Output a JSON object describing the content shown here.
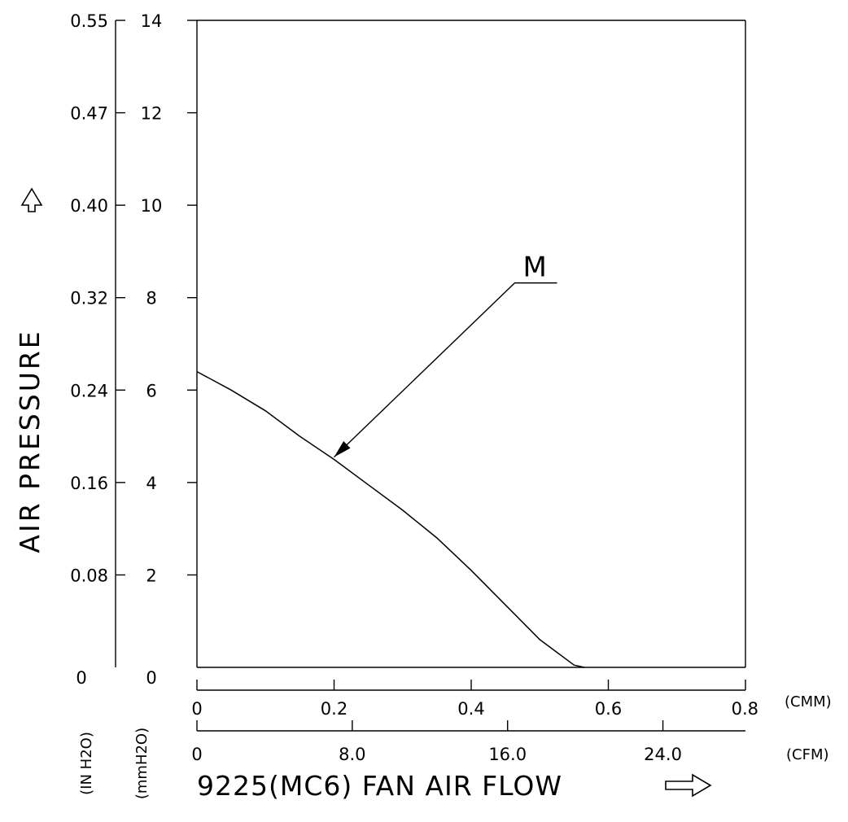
{
  "chart_data": {
    "type": "line",
    "title": "9225(MC6) FAN AIR FLOW",
    "ylabel": "AIR PRESSURE",
    "x_units": {
      "primary": "(CMM)",
      "secondary": "(CFM)"
    },
    "y_units": {
      "primary": "(mmH2O)",
      "secondary": "(IN H2O)"
    },
    "x_ticks_cmm": [
      "0",
      "0.2",
      "0.4",
      "0.6",
      "0.8"
    ],
    "x_ticks_cfm": [
      "0",
      "8.0",
      "16.0",
      "24.0"
    ],
    "y_ticks_mmh2o": [
      "0",
      "2",
      "4",
      "6",
      "8",
      "10",
      "12",
      "14"
    ],
    "y_ticks_inh2o": [
      "0",
      "0.08",
      "0.16",
      "0.24",
      "0.32",
      "0.40",
      "0.47",
      "0.55"
    ],
    "xlim": [
      0,
      0.8
    ],
    "ylim": [
      0,
      14
    ],
    "grid": false,
    "series": [
      {
        "name": "M",
        "x": [
          0,
          0.05,
          0.1,
          0.15,
          0.2,
          0.25,
          0.3,
          0.35,
          0.4,
          0.45,
          0.5,
          0.55,
          0.565
        ],
        "values": [
          6.4,
          6.0,
          5.55,
          5.0,
          4.5,
          3.95,
          3.4,
          2.8,
          2.1,
          1.35,
          0.6,
          0.05,
          0
        ]
      }
    ],
    "annotation": {
      "label": "M",
      "target_x": 0.2,
      "target_y": 4.55
    }
  }
}
